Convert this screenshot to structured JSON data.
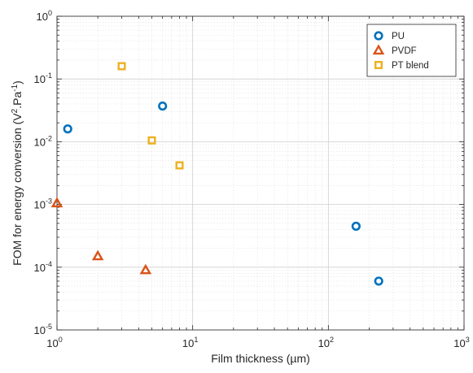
{
  "chart_data": {
    "type": "scatter",
    "xlabel": "Film thickness (µm)",
    "ylabel": "FOM for energy conversion (V²·Pa⁻¹)",
    "ylabel_parts": {
      "base": "FOM for energy conversion (V",
      "sup1": "2",
      "mid": ".Pa",
      "sup2": "-1",
      "end": ")"
    },
    "x_scale": "log",
    "y_scale": "log",
    "xlim": [
      1,
      1000
    ],
    "ylim": [
      1e-05,
      1
    ],
    "grid": true,
    "legend_position": "top-right",
    "x_ticks": [
      {
        "value": 1,
        "base": "10",
        "exp": "0"
      },
      {
        "value": 10,
        "base": "10",
        "exp": "1"
      },
      {
        "value": 100,
        "base": "10",
        "exp": "2"
      },
      {
        "value": 1000,
        "base": "10",
        "exp": "3"
      }
    ],
    "y_ticks": [
      {
        "value": 1e-05,
        "base": "10",
        "exp": "-5"
      },
      {
        "value": 0.0001,
        "base": "10",
        "exp": "-4"
      },
      {
        "value": 0.001,
        "base": "10",
        "exp": "-3"
      },
      {
        "value": 0.01,
        "base": "10",
        "exp": "-2"
      },
      {
        "value": 0.1,
        "base": "10",
        "exp": "-1"
      },
      {
        "value": 1,
        "base": "10",
        "exp": "0"
      }
    ],
    "series": [
      {
        "name": "PU",
        "marker": "circle",
        "color": "#0072BD",
        "points": [
          {
            "x": 1.2,
            "y": 0.016
          },
          {
            "x": 6,
            "y": 0.037
          },
          {
            "x": 160,
            "y": 0.00045
          },
          {
            "x": 235,
            "y": 6e-05
          }
        ]
      },
      {
        "name": "PVDF",
        "marker": "triangle",
        "color": "#D95319",
        "points": [
          {
            "x": 1,
            "y": 0.00105
          },
          {
            "x": 2,
            "y": 0.00015
          },
          {
            "x": 4.5,
            "y": 9e-05
          }
        ]
      },
      {
        "name": "PT blend",
        "marker": "square",
        "color": "#EDB120",
        "points": [
          {
            "x": 3,
            "y": 0.16
          },
          {
            "x": 5,
            "y": 0.0105
          },
          {
            "x": 8,
            "y": 0.0042
          }
        ]
      }
    ]
  }
}
